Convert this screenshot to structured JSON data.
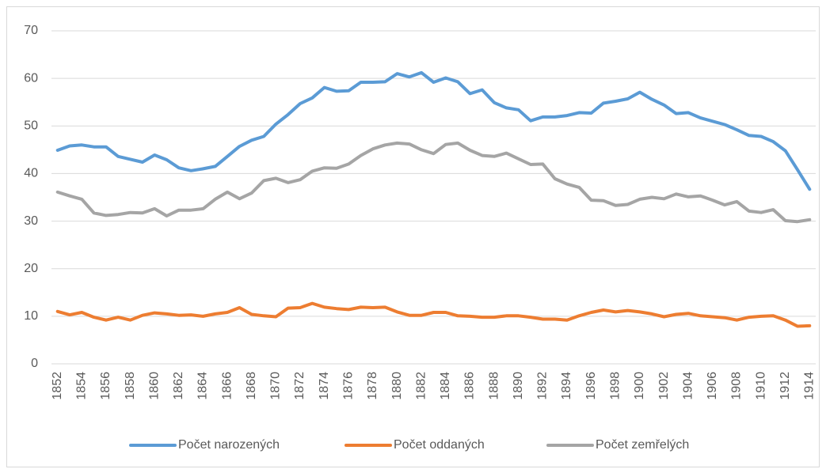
{
  "chart_data": {
    "type": "line",
    "x": [
      1852,
      1853,
      1854,
      1855,
      1856,
      1857,
      1858,
      1859,
      1860,
      1861,
      1862,
      1863,
      1864,
      1865,
      1866,
      1867,
      1868,
      1869,
      1870,
      1871,
      1872,
      1873,
      1874,
      1875,
      1876,
      1877,
      1878,
      1879,
      1880,
      1881,
      1882,
      1883,
      1884,
      1885,
      1886,
      1887,
      1888,
      1889,
      1890,
      1891,
      1892,
      1893,
      1894,
      1895,
      1896,
      1897,
      1898,
      1899,
      1900,
      1901,
      1902,
      1903,
      1904,
      1905,
      1906,
      1907,
      1908,
      1909,
      1910,
      1911,
      1912,
      1913,
      1914
    ],
    "series": [
      {
        "name": "Počet narozených",
        "color": "#5b9bd5",
        "values": [
          44.9,
          45.8,
          46.0,
          45.6,
          45.6,
          43.6,
          43.0,
          42.4,
          43.9,
          42.9,
          41.2,
          40.6,
          41.0,
          41.5,
          43.6,
          45.7,
          47.0,
          47.8,
          50.4,
          52.4,
          54.7,
          55.9,
          58.1,
          57.3,
          57.4,
          59.2,
          59.2,
          59.3,
          61.0,
          60.3,
          61.2,
          59.2,
          60.1,
          59.3,
          56.8,
          57.6,
          54.9,
          53.8,
          53.4,
          51.1,
          51.9,
          51.9,
          52.2,
          52.8,
          52.7,
          54.8,
          55.2,
          55.7,
          57.1,
          55.6,
          54.4,
          52.6,
          52.8,
          51.7,
          51.0,
          50.3,
          49.2,
          48.0,
          47.8,
          46.7,
          44.8,
          40.8,
          36.7
        ]
      },
      {
        "name": "Počet oddaných",
        "color": "#ed7d31",
        "values": [
          11.0,
          10.3,
          10.8,
          9.8,
          9.2,
          9.8,
          9.2,
          10.2,
          10.7,
          10.5,
          10.2,
          10.3,
          10.0,
          10.5,
          10.8,
          11.8,
          10.4,
          10.1,
          9.9,
          11.7,
          11.8,
          12.7,
          11.9,
          11.6,
          11.4,
          11.9,
          11.8,
          11.9,
          10.9,
          10.2,
          10.2,
          10.8,
          10.8,
          10.1,
          10.0,
          9.8,
          9.8,
          10.1,
          10.1,
          9.8,
          9.4,
          9.4,
          9.2,
          10.1,
          10.8,
          11.3,
          10.9,
          11.2,
          10.9,
          10.5,
          9.9,
          10.4,
          10.6,
          10.1,
          9.9,
          9.7,
          9.2,
          9.8,
          10.0,
          10.1,
          9.2,
          7.9,
          8.0
        ]
      },
      {
        "name": "Počet zemřelých",
        "color": "#a5a5a5",
        "values": [
          36.1,
          35.3,
          34.6,
          31.7,
          31.2,
          31.4,
          31.8,
          31.7,
          32.6,
          31.1,
          32.3,
          32.3,
          32.6,
          34.6,
          36.1,
          34.7,
          35.9,
          38.5,
          39.0,
          38.1,
          38.7,
          40.5,
          41.2,
          41.1,
          42.0,
          43.8,
          45.2,
          46.0,
          46.4,
          46.2,
          45.0,
          44.2,
          46.1,
          46.4,
          44.9,
          43.8,
          43.6,
          44.3,
          43.1,
          41.9,
          42.0,
          38.9,
          37.8,
          37.1,
          34.4,
          34.3,
          33.3,
          33.5,
          34.6,
          35.0,
          34.7,
          35.7,
          35.1,
          35.3,
          34.4,
          33.4,
          34.1,
          32.1,
          31.8,
          32.4,
          30.1,
          29.9,
          30.3
        ]
      }
    ],
    "xlim": [
      1851.5,
      1914.5
    ],
    "xticks": [
      1852,
      1854,
      1856,
      1858,
      1860,
      1862,
      1864,
      1866,
      1868,
      1870,
      1872,
      1874,
      1876,
      1878,
      1880,
      1882,
      1884,
      1886,
      1888,
      1890,
      1892,
      1894,
      1896,
      1898,
      1900,
      1902,
      1904,
      1906,
      1908,
      1910,
      1912,
      1914
    ],
    "ylim": [
      0,
      70
    ],
    "yticks": [
      0,
      10,
      20,
      30,
      40,
      50,
      60,
      70
    ],
    "grid": true,
    "legend": "bottom"
  }
}
